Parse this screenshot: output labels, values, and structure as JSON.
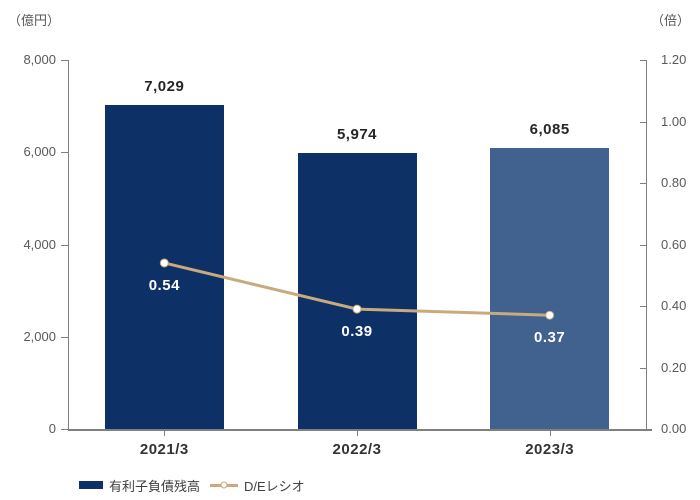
{
  "chart_data": {
    "type": "bar+line",
    "categories": [
      "2021/3",
      "2022/3",
      "2023/3"
    ],
    "series": [
      {
        "name": "有利子負債残高",
        "type": "bar",
        "axis": "left",
        "values": [
          7029,
          5974,
          6085
        ],
        "labels": [
          "7,029",
          "5,974",
          "6,085"
        ],
        "bar_colors": [
          "#0d3166",
          "#0d3166",
          "#41618e"
        ]
      },
      {
        "name": "D/Eレシオ",
        "type": "line",
        "axis": "right",
        "values": [
          0.54,
          0.39,
          0.37
        ],
        "labels": [
          "0.54",
          "0.39",
          "0.37"
        ],
        "color": "#c9aa7c",
        "marker_fill": "#ffffff"
      }
    ],
    "left_axis": {
      "unit": "（億円）",
      "min": 0,
      "max": 8000,
      "ticks": [
        "8,000",
        "6,000",
        "4,000",
        "2,000",
        "0"
      ]
    },
    "right_axis": {
      "unit": "（倍）",
      "min": 0,
      "max": 1.2,
      "ticks": [
        "1.20",
        "1.00",
        "0.80",
        "0.60",
        "0.40",
        "0.20",
        "0.00"
      ]
    },
    "legend": [
      {
        "label": "有利子負債残高",
        "swatch": "bar",
        "color": "#0d3166"
      },
      {
        "label": "D/Eレシオ",
        "swatch": "line",
        "color": "#c9aa7c"
      }
    ],
    "grid": "off",
    "legend_position": "bottom-left",
    "colors": {
      "axis": "#808080",
      "tick_text": "#595959",
      "value_label": "#262626",
      "category_label": "#333333"
    }
  }
}
